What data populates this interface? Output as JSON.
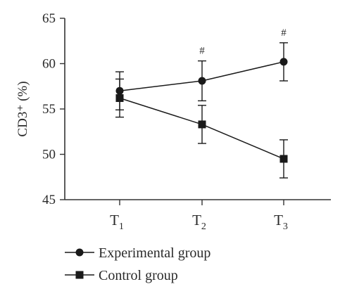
{
  "chart_data": {
    "type": "line",
    "ylabel": "CD3⁺ (%)",
    "xlabel": "",
    "ylim": [
      45,
      65
    ],
    "yticks": [
      45,
      50,
      55,
      60,
      65
    ],
    "categories": [
      {
        "base": "T",
        "sub": "1"
      },
      {
        "base": "T",
        "sub": "2"
      },
      {
        "base": "T",
        "sub": "3"
      }
    ],
    "series": [
      {
        "name": "Experimental group",
        "marker": "circle",
        "values": [
          57.0,
          58.1,
          60.2
        ],
        "errors": [
          2.1,
          2.2,
          2.1
        ]
      },
      {
        "name": "Control group",
        "marker": "square",
        "values": [
          56.2,
          53.3,
          49.5
        ],
        "errors": [
          2.1,
          2.1,
          2.1
        ]
      }
    ],
    "annotations": [
      {
        "category_index": 1,
        "text": "#"
      },
      {
        "category_index": 2,
        "text": "#"
      }
    ],
    "legend_position": "bottom-left",
    "grid": false,
    "colors": {
      "line": "#1a1a1a",
      "axis": "#333333"
    }
  }
}
